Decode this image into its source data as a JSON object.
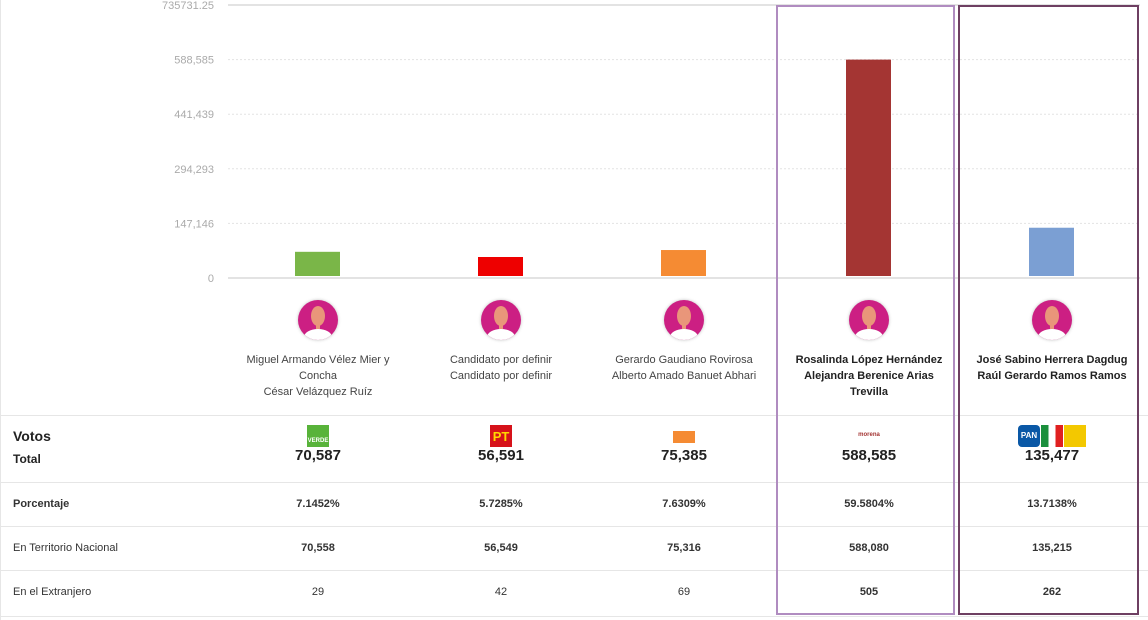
{
  "chart_data": {
    "type": "bar",
    "title": "",
    "xlabel": "",
    "ylabel": "",
    "categories": [
      "PVEM",
      "PT",
      "MC",
      "MORENA",
      "PAN-PRI-PRD"
    ],
    "values": [
      70587,
      56591,
      75385,
      588585,
      135477
    ],
    "colors": [
      "#7ab648",
      "#ee0000",
      "#f58b33",
      "#a43533",
      "#7b9fd3"
    ],
    "ylim": [
      0,
      735731.25
    ],
    "yticks": [
      "0",
      "147,146",
      "294,293",
      "441,439",
      "588,585",
      "735731.25"
    ],
    "ytick_values": [
      0,
      147146,
      294293,
      441439,
      588585,
      735731.25
    ],
    "grid": true,
    "legend": "none"
  },
  "candidates": [
    {
      "names": [
        "Miguel Armando Vélez Mier y Concha",
        "César Velázquez Ruíz"
      ],
      "party_logo": "verde-logo",
      "logo_text": "VERDE",
      "total": "70,587",
      "porcentaje": "7.1452%",
      "nacional": "70,558",
      "extranjero": "29",
      "highlight": false
    },
    {
      "names": [
        "Candidato por definir",
        "Candidato por definir"
      ],
      "party_logo": "pt-logo",
      "logo_text": "PT",
      "total": "56,591",
      "porcentaje": "5.7285%",
      "nacional": "56,549",
      "extranjero": "42",
      "highlight": false
    },
    {
      "names": [
        "Gerardo Gaudiano Rovirosa",
        "Alberto Amado Banuet Abhari"
      ],
      "party_logo": "movimiento-ciudadano-logo",
      "logo_text": "",
      "total": "75,385",
      "porcentaje": "7.6309%",
      "nacional": "75,316",
      "extranjero": "69",
      "highlight": false
    },
    {
      "names": [
        "Rosalinda López Hernández",
        "Alejandra Berenice Arias Trevilla"
      ],
      "party_logo": "morena-logo",
      "logo_text": "morena",
      "total": "588,585",
      "porcentaje": "59.5804%",
      "nacional": "588,080",
      "extranjero": "505",
      "highlight": true
    },
    {
      "names": [
        "José Sabino Herrera Dagdug",
        "Raúl Gerardo Ramos Ramos"
      ],
      "party_logo": "pan-pri-prd-logo",
      "logo_text": "PAN",
      "total": "135,477",
      "porcentaje": "13.7138%",
      "nacional": "135,215",
      "extranjero": "262",
      "highlight": true
    }
  ],
  "table": {
    "votos_label": "Votos",
    "total_label": "Total",
    "porcentaje_label": "Porcentaje",
    "nacional_label": "En Territorio Nacional",
    "extranjero_label": "En el Extranjero"
  },
  "colors": {
    "highlight_1": "#b08cc0",
    "highlight_2": "#6e3f62",
    "avatar_bg": "#cc1f83"
  }
}
